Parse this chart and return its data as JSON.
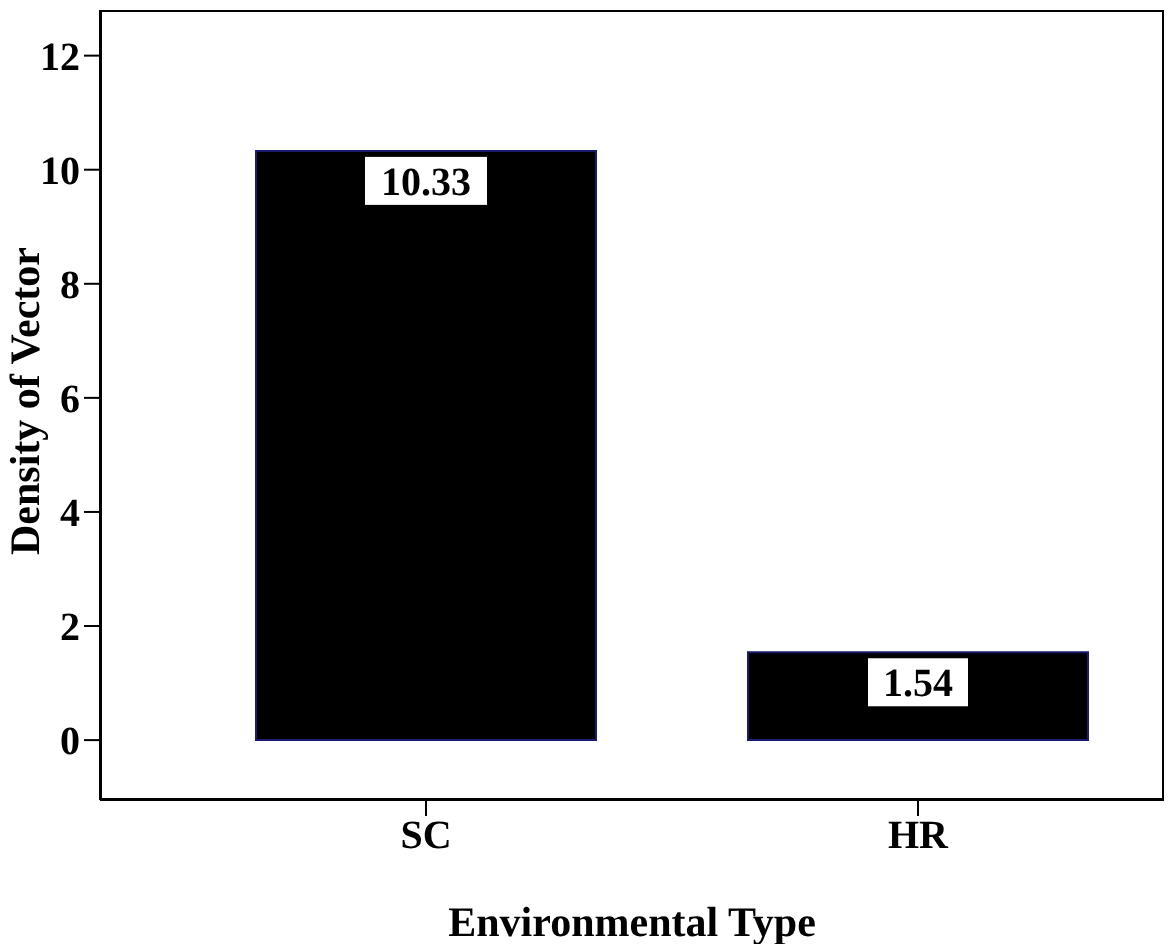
{
  "chart_data": {
    "type": "bar",
    "xlabel": "Environmental Type",
    "ylabel": "Density of Vector",
    "categories": [
      "SC",
      "HR"
    ],
    "values": [
      10.33,
      1.54
    ],
    "color": "#000000",
    "ylim": [
      -1.05,
      12.8
    ],
    "yticks": [
      0,
      2,
      4,
      6,
      8,
      10,
      12
    ],
    "data_labels": true,
    "grid": false,
    "legend": false
  }
}
